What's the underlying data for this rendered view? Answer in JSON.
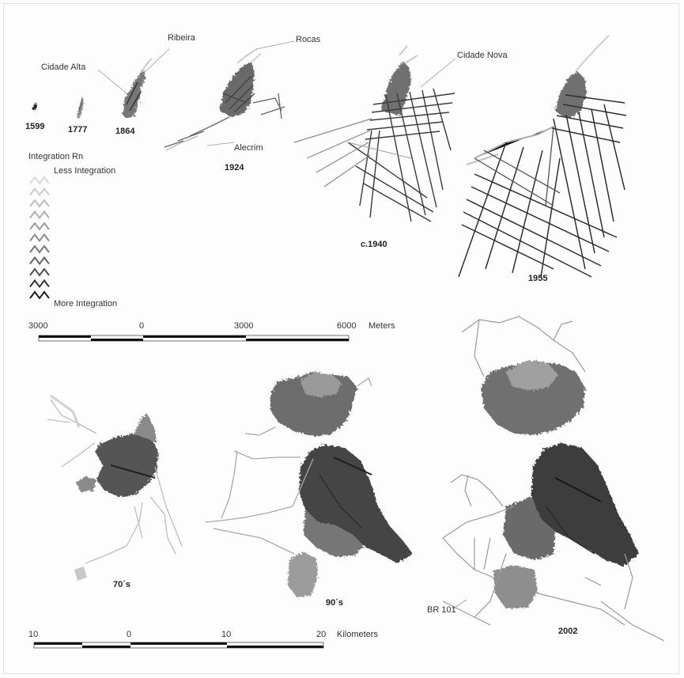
{
  "place_labels": {
    "ribeira": "Ribeira",
    "rocas": "Rocas",
    "cidade_alta": "Cidade Alta",
    "cidade_nova": "Cidade Nova",
    "alecrim": "Alecrim",
    "br101": "BR 101"
  },
  "years": {
    "y1599": "1599",
    "y1777": "1777",
    "y1864": "1864",
    "y1924": "1924",
    "y1940": "c.1940",
    "y1955": "1955",
    "y70s": "70´s",
    "y90s": "90´s",
    "y2002": "2002"
  },
  "legend": {
    "title": "Integration Rn",
    "less": "Less Integration",
    "more": "More Integration",
    "ramp_colors": [
      "#d9d9d9",
      "#cccccc",
      "#bdbdbd",
      "#aeaeae",
      "#9c9c9c",
      "#8a8a8a",
      "#777777",
      "#636363",
      "#4d4d4d",
      "#363636",
      "#1e1e1e"
    ]
  },
  "scale_meters": {
    "ticks": [
      "3000",
      "0",
      "3000",
      "6000"
    ],
    "unit": "Meters"
  },
  "scale_km": {
    "ticks": [
      "10",
      "0",
      "10",
      "20"
    ],
    "unit": "Kilometers"
  }
}
